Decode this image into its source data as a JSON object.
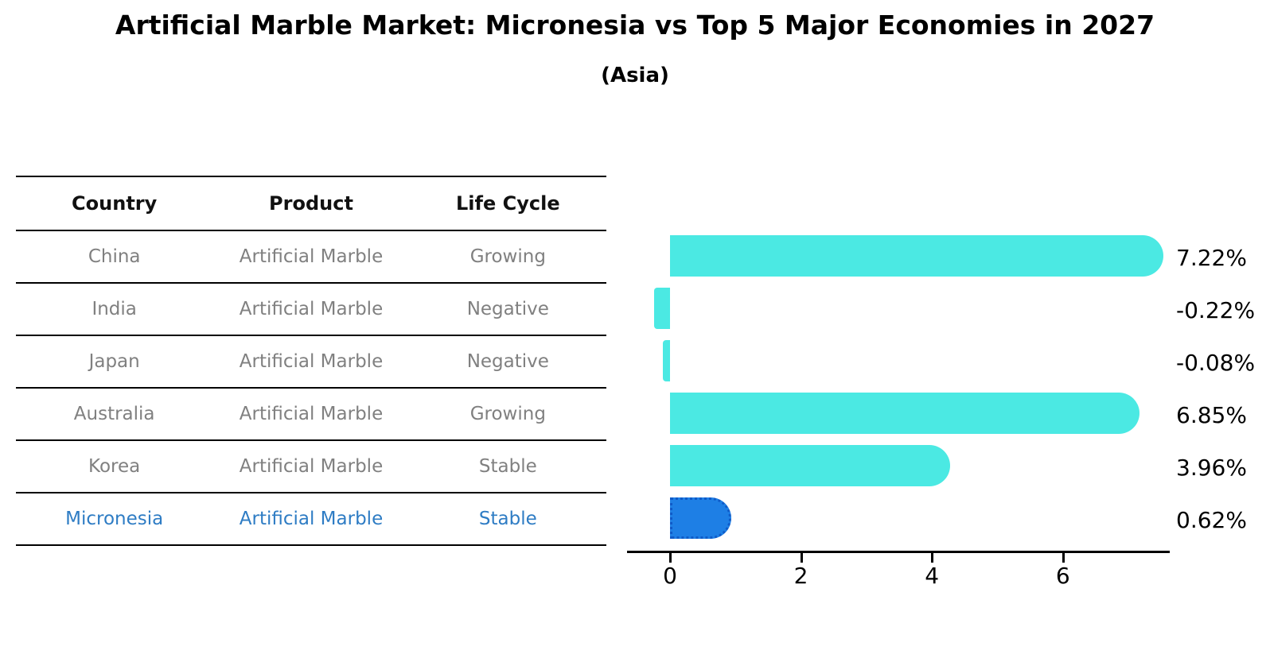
{
  "header": {
    "title": "Artificial Marble Market: Micronesia vs Top 5 Major Economies in 2027",
    "subtitle": "(Asia)"
  },
  "table": {
    "columns": [
      "Country",
      "Product",
      "Life Cycle"
    ],
    "rows": [
      {
        "country": "China",
        "product": "Artificial Marble",
        "life_cycle": "Growing",
        "highlighted": false
      },
      {
        "country": "India",
        "product": "Artificial Marble",
        "life_cycle": "Negative",
        "highlighted": false
      },
      {
        "country": "Japan",
        "product": "Artificial Marble",
        "life_cycle": "Negative",
        "highlighted": false
      },
      {
        "country": "Australia",
        "product": "Artificial Marble",
        "life_cycle": "Growing",
        "highlighted": false
      },
      {
        "country": "Korea",
        "product": "Artificial Marble",
        "life_cycle": "Stable",
        "highlighted": false
      },
      {
        "country": "Micronesia",
        "product": "Artificial Marble",
        "life_cycle": "Stable",
        "highlighted": true
      }
    ]
  },
  "chart_data": {
    "type": "bar",
    "orientation": "horizontal",
    "title": "Artificial Marble Market: Micronesia vs Top 5 Major Economies in 2027",
    "subtitle": "(Asia)",
    "categories": [
      "China",
      "India",
      "Japan",
      "Australia",
      "Korea",
      "Micronesia"
    ],
    "values": [
      7.22,
      -0.22,
      -0.08,
      6.85,
      3.96,
      0.62
    ],
    "value_labels": [
      "7.22%",
      "-0.22%",
      "-0.08%",
      "6.85%",
      "3.96%",
      "0.62%"
    ],
    "x_ticks": [
      0,
      2,
      4,
      6
    ],
    "xlim": [
      -0.65,
      7.65
    ],
    "grid": false,
    "legend": "none",
    "bar_color": "#4BE9E3",
    "highlight_bar_color": "#1E7FE5",
    "highlight_index": 5
  },
  "colors": {
    "row_text": "#808080",
    "header_text": "#111111",
    "highlight_text": "#2E7CC4",
    "axis": "#000000",
    "background": "#ffffff"
  }
}
